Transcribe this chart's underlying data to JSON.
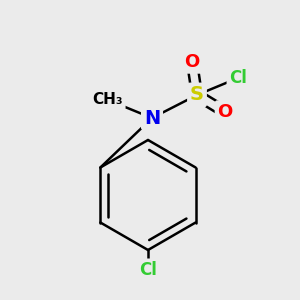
{
  "background_color": "#ebebeb",
  "bond_color": "#000000",
  "bond_width": 1.8,
  "atoms": {
    "N": {
      "color": "#0000ee",
      "label": "N",
      "fontsize": 14
    },
    "S": {
      "color": "#cccc00",
      "label": "S",
      "fontsize": 14
    },
    "Cl_s": {
      "color": "#33cc33",
      "label": "Cl",
      "fontsize": 12
    },
    "O1": {
      "color": "#ff0000",
      "label": "O",
      "fontsize": 13
    },
    "O2": {
      "color": "#ff0000",
      "label": "O",
      "fontsize": 13
    },
    "Me": {
      "color": "#000000",
      "label": "CH₃",
      "fontsize": 11
    },
    "Cl_p": {
      "color": "#33cc33",
      "label": "Cl",
      "fontsize": 12
    }
  }
}
